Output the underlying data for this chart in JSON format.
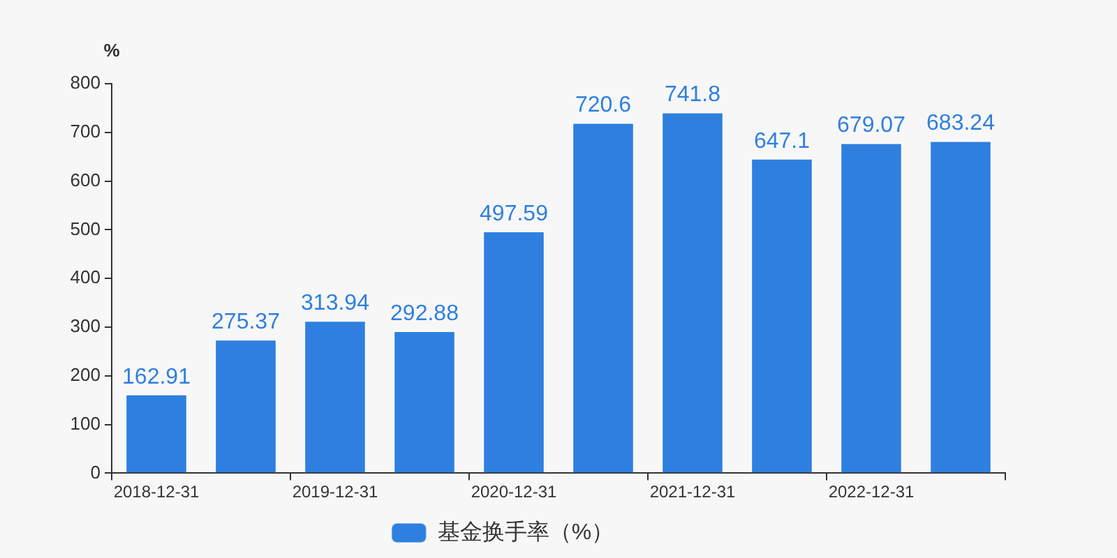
{
  "chart_data": {
    "type": "bar",
    "ylabel": "%",
    "categories": [
      "2018-12-31",
      null,
      "2019-12-31",
      null,
      "2020-12-31",
      null,
      "2021-12-31",
      null,
      "2022-12-31",
      null
    ],
    "series": [
      {
        "name": "基金换手率（%）",
        "color": "#2e7fdf",
        "values": [
          162.91,
          275.37,
          313.94,
          292.88,
          497.59,
          720.6,
          741.8,
          647.1,
          679.07,
          683.24
        ]
      }
    ],
    "ylim": [
      0,
      800
    ],
    "yticks": [
      0,
      100,
      200,
      300,
      400,
      500,
      600,
      700,
      800
    ],
    "grid": false,
    "legend": "bottom",
    "data_labels": true
  }
}
